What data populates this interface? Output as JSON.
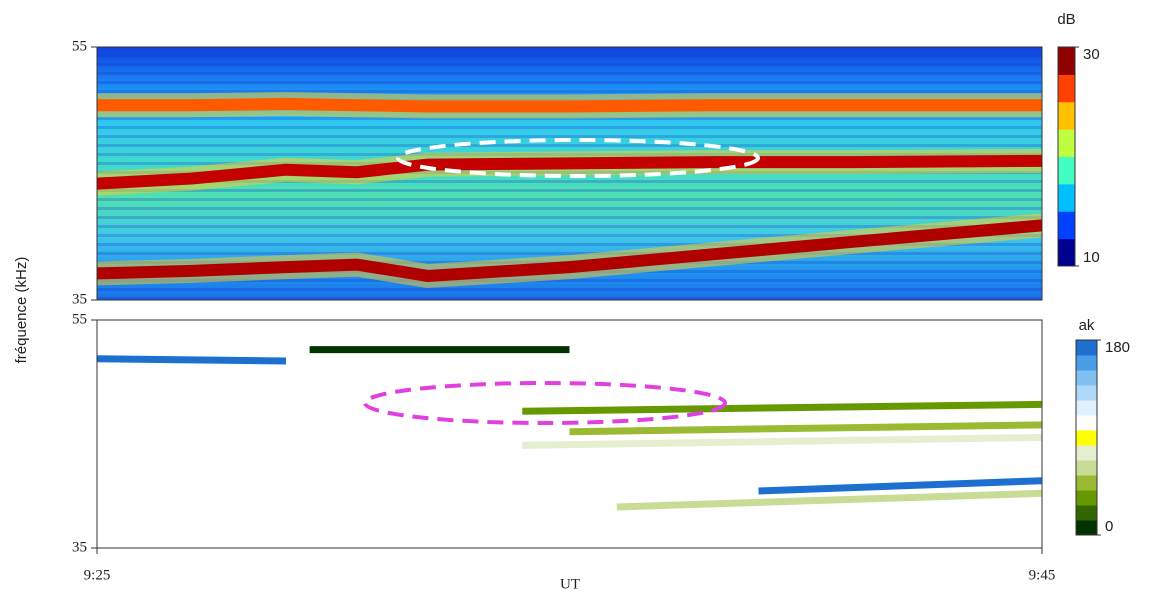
{
  "chart_data": [
    {
      "type": "spectrogram",
      "ylabel": "fréquence (kHz)",
      "xlim": [
        0,
        20
      ],
      "ylim": [
        35,
        55
      ],
      "yticks": [
        35,
        55
      ],
      "colorbar": {
        "label": "dB",
        "lim": [
          10,
          30
        ],
        "ticks": [
          10,
          30
        ],
        "colors": [
          "#00008f",
          "#0040ff",
          "#00c0ff",
          "#40ffc0",
          "#c0ff40",
          "#ffc000",
          "#ff4000",
          "#8f0000"
        ]
      },
      "bands": [
        {
          "color": "#ff5a00",
          "x": [
            0,
            2,
            4,
            5.5,
            7,
            10,
            13,
            16,
            20
          ],
          "values": [
            50.4,
            50.4,
            50.5,
            50.4,
            50.3,
            50.3,
            50.4,
            50.4,
            50.4
          ]
        },
        {
          "color": "#c40000",
          "x": [
            0,
            2,
            4,
            5.5,
            7,
            10,
            13,
            16,
            20
          ],
          "values": [
            44.2,
            44.6,
            45.3,
            45.1,
            45.7,
            45.8,
            45.9,
            45.9,
            46.0
          ]
        },
        {
          "color": "#b00000",
          "x": [
            0,
            2,
            4,
            5.5,
            7,
            10,
            13,
            16,
            20
          ],
          "values": [
            37.1,
            37.3,
            37.6,
            37.8,
            36.9,
            37.6,
            38.6,
            39.6,
            40.9
          ]
        }
      ]
    },
    {
      "type": "spectrogram",
      "xlabel": "UT",
      "xlim": [
        0,
        20
      ],
      "ylim": [
        35,
        55
      ],
      "yticks": [
        35,
        55
      ],
      "xticks": [
        {
          "value": 0,
          "label": "9:25"
        },
        {
          "value": 20,
          "label": "9:45"
        }
      ],
      "colorbar": {
        "label": "ak",
        "lim": [
          0,
          180
        ],
        "ticks": [
          0,
          180
        ],
        "colors": [
          "#003300",
          "#336600",
          "#669900",
          "#99bb33",
          "#c8dc96",
          "#e6eed0",
          "#ffff00",
          "#ffffff",
          "#e0f0ff",
          "#b0d8f8",
          "#80c0f0",
          "#4a9ee8",
          "#1e70d0"
        ]
      },
      "bands": [
        {
          "color": "#003300",
          "x": [
            4.5,
            10
          ],
          "values": [
            52.4,
            52.4
          ]
        },
        {
          "color": "#669900",
          "x": [
            9,
            20
          ],
          "values": [
            47.0,
            47.6
          ]
        },
        {
          "color": "#99bb33",
          "x": [
            10,
            20
          ],
          "values": [
            45.2,
            45.8
          ]
        },
        {
          "color": "#e6eed0",
          "x": [
            9,
            20
          ],
          "values": [
            44.0,
            44.7
          ]
        },
        {
          "color": "#c8dc96",
          "x": [
            11,
            20
          ],
          "values": [
            38.6,
            39.8
          ]
        },
        {
          "color": "#1e70d0",
          "x": [
            14,
            20
          ],
          "values": [
            40.0,
            40.9
          ]
        },
        {
          "color": "#1e70d0",
          "x": [
            0,
            4
          ],
          "values": [
            51.6,
            51.4
          ]
        }
      ]
    }
  ]
}
